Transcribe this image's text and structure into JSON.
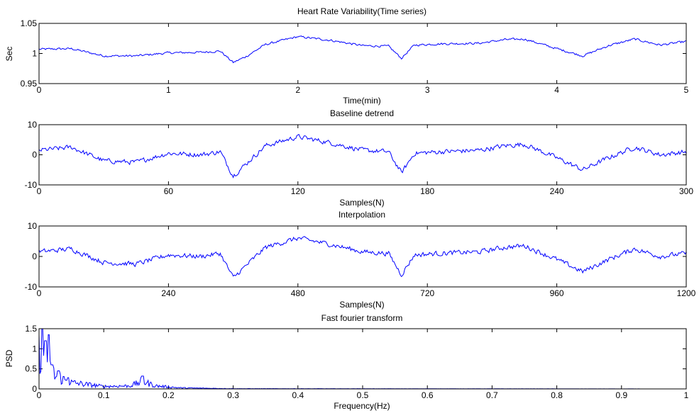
{
  "figure": {
    "background": "#ffffff",
    "line_color": "#0000ff",
    "axis_color": "#000000"
  },
  "chart_data": [
    {
      "type": "line",
      "title": "Heart Rate Variability(Time series)",
      "xlabel": "Time(min)",
      "ylabel": "Sec",
      "xlim": [
        0,
        5
      ],
      "ylim": [
        0.95,
        1.05
      ],
      "xticks": [
        0,
        1,
        2,
        3,
        4,
        5
      ],
      "xtick_labels": [
        "0",
        "1",
        "2",
        "3",
        "4",
        "5"
      ],
      "yticks": [
        0.95,
        1,
        1.05
      ],
      "ytick_labels": [
        "0.95",
        "1",
        "1.05"
      ],
      "grid": false,
      "x": [
        0,
        0.25,
        0.5,
        0.75,
        1.0,
        1.25,
        1.4,
        1.5,
        1.6,
        1.75,
        2.0,
        2.25,
        2.5,
        2.7,
        2.8,
        2.9,
        3.1,
        3.4,
        3.6,
        3.75,
        4.0,
        4.2,
        4.4,
        4.6,
        4.8,
        5.0
      ],
      "values": [
        1.007,
        1.008,
        0.996,
        0.996,
        1.001,
        1.002,
        1.004,
        0.985,
        0.995,
        1.015,
        1.028,
        1.022,
        1.013,
        1.012,
        0.992,
        1.014,
        1.016,
        1.017,
        1.023,
        1.024,
        1.008,
        0.996,
        1.013,
        1.024,
        1.014,
        1.02
      ],
      "noise": 0.002
    },
    {
      "type": "line",
      "title": "Baseline detrend",
      "xlabel": "Samples(N)",
      "ylabel": "",
      "xlim": [
        0,
        300
      ],
      "ylim": [
        -10,
        10
      ],
      "xticks": [
        0,
        60,
        120,
        180,
        240,
        300
      ],
      "xtick_labels": [
        "0",
        "60",
        "120",
        "180",
        "240",
        "300"
      ],
      "yticks": [
        -10,
        0,
        10
      ],
      "ytick_labels": [
        "-10",
        "0",
        "10"
      ],
      "grid": false,
      "x": [
        0,
        15,
        30,
        45,
        60,
        75,
        84,
        90,
        96,
        105,
        120,
        135,
        150,
        162,
        168,
        174,
        186,
        204,
        216,
        225,
        240,
        252,
        264,
        276,
        288,
        300
      ],
      "values": [
        1.5,
        2.5,
        -2,
        -2.5,
        0.5,
        0,
        1,
        -7,
        -3,
        3,
        6,
        4,
        1.5,
        1,
        -6,
        0.5,
        1,
        1.5,
        3,
        3.5,
        -1,
        -5,
        -1,
        2.5,
        0,
        1
      ],
      "noise": 0.9
    },
    {
      "type": "line",
      "title": "Interpolation",
      "xlabel": "Samples(N)",
      "ylabel": "",
      "xlim": [
        0,
        1200
      ],
      "ylim": [
        -10,
        10
      ],
      "xticks": [
        0,
        240,
        480,
        720,
        960,
        1200
      ],
      "xtick_labels": [
        "0",
        "240",
        "480",
        "720",
        "960",
        "1200"
      ],
      "yticks": [
        -10,
        0,
        10
      ],
      "ytick_labels": [
        "-10",
        "0",
        "10"
      ],
      "grid": false,
      "x": [
        0,
        60,
        120,
        180,
        240,
        300,
        336,
        360,
        384,
        420,
        480,
        540,
        600,
        648,
        672,
        696,
        744,
        816,
        864,
        900,
        960,
        1008,
        1056,
        1104,
        1152,
        1200
      ],
      "values": [
        1.5,
        2.5,
        -2,
        -2.5,
        0.5,
        0,
        1,
        -7,
        -3,
        3,
        6,
        4,
        1.5,
        1,
        -6,
        0.5,
        1,
        1.5,
        3,
        3.5,
        -1,
        -5,
        -1,
        2.5,
        0,
        1
      ],
      "noise": 0.9
    },
    {
      "type": "line",
      "title": "Fast fourier transform",
      "xlabel": "Frequency(Hz)",
      "ylabel": "PSD",
      "xlim": [
        0,
        1
      ],
      "ylim": [
        0,
        1.5
      ],
      "xticks": [
        0,
        0.1,
        0.2,
        0.3,
        0.4,
        0.5,
        0.6,
        0.7,
        0.8,
        0.9,
        1
      ],
      "xtick_labels": [
        "0",
        "0.1",
        "0.2",
        "0.3",
        "0.4",
        "0.5",
        "0.6",
        "0.7",
        "0.8",
        "0.9",
        "1"
      ],
      "yticks": [
        0,
        0.5,
        1,
        1.5
      ],
      "ytick_labels": [
        "0",
        "0.5",
        "1",
        "1.5"
      ],
      "grid": false,
      "peaks": [
        {
          "x": 0.005,
          "y": 1.5
        },
        {
          "x": 0.01,
          "y": 1.2
        },
        {
          "x": 0.015,
          "y": 1.35
        },
        {
          "x": 0.02,
          "y": 0.6
        },
        {
          "x": 0.03,
          "y": 0.45
        },
        {
          "x": 0.045,
          "y": 0.28
        },
        {
          "x": 0.16,
          "y": 0.32
        }
      ],
      "envelope": [
        {
          "x": 0.0,
          "y": 1.5
        },
        {
          "x": 0.025,
          "y": 0.5
        },
        {
          "x": 0.05,
          "y": 0.25
        },
        {
          "x": 0.1,
          "y": 0.1
        },
        {
          "x": 0.14,
          "y": 0.12
        },
        {
          "x": 0.16,
          "y": 0.3
        },
        {
          "x": 0.18,
          "y": 0.12
        },
        {
          "x": 0.22,
          "y": 0.04
        },
        {
          "x": 0.3,
          "y": 0.01
        },
        {
          "x": 1.0,
          "y": 0.0
        }
      ]
    }
  ]
}
